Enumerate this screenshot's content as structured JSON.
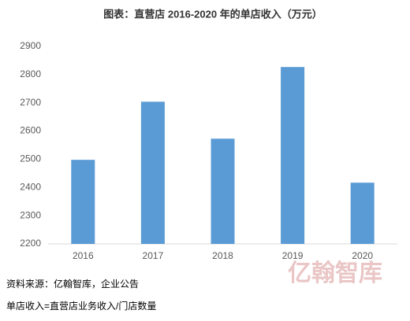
{
  "chart_data": {
    "type": "bar",
    "title": "图表：直营店 2016-2020 年的单店收入（万元）",
    "categories": [
      "2016",
      "2017",
      "2018",
      "2019",
      "2020"
    ],
    "values": [
      2498,
      2704,
      2573,
      2827,
      2417
    ],
    "color": "#5b9bd5",
    "ylim": [
      2200,
      2900
    ],
    "yticks": [
      2200,
      2300,
      2400,
      2500,
      2600,
      2700,
      2800,
      2900
    ],
    "grid": false,
    "watermark": "亿翰智库",
    "source": "资料来源：亿翰智库，企业公告",
    "note": "单店收入=直营店业务收入/门店数量"
  }
}
